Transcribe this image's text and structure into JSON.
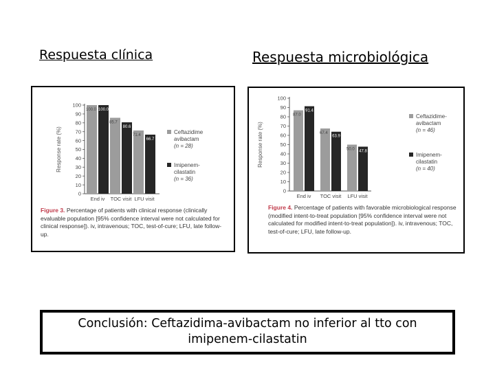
{
  "headings": {
    "left": "Respuesta clínica",
    "right": "Respuesta microbiológica"
  },
  "conclusion": {
    "line1": "Conclusión: Ceftazidima-avibactam no inferior al tto con",
    "line2": "imipenem-cilastatin"
  },
  "colors": {
    "series1": "#9c9c9c",
    "series2": "#262626",
    "axis": "#555555"
  },
  "chart_data": [
    {
      "type": "bar",
      "categories": [
        "End iv",
        "TOC visit",
        "LFU visit"
      ],
      "series": [
        {
          "name": "Ceftazidime-avibactam (n = 28)",
          "values": [
            100.0,
            85.7,
            71.4
          ]
        },
        {
          "name": "Imipenem-cilastatin (n = 36)",
          "values": [
            100.0,
            80.6,
            66.7
          ]
        }
      ],
      "value_labels": [
        [
          "100.0",
          "85.7",
          "71.4"
        ],
        [
          "100.0",
          "80.6",
          "66.7"
        ]
      ],
      "legend": [
        {
          "lines": [
            "Ceftazidime",
            "avibactam",
            "(n = 28)"
          ]
        },
        {
          "lines": [
            "Imipenem-",
            "cilastatin",
            "(n = 36)"
          ]
        }
      ],
      "ylabel": "Response rate (%)",
      "ylim": [
        0,
        100
      ],
      "yticks": [
        0,
        10,
        20,
        30,
        40,
        50,
        60,
        70,
        80,
        90,
        100
      ],
      "legend_position": "right",
      "caption": {
        "figure": "Figure 3.",
        "text": "Percentage of patients with clinical response (clinically evaluable population [95% confidence interval were not calculated for clinical response]). iv, intravenous; TOC, test-of-cure; LFU, late follow-up."
      }
    },
    {
      "type": "bar",
      "categories": [
        "End iv",
        "TOC visit",
        "LFU visit"
      ],
      "series": [
        {
          "name": "Ceftazidime-avibactam (n = 46)",
          "values": [
            87.0,
            67.4,
            50.0
          ]
        },
        {
          "name": "Imipenem-cilastatin (n = 40)",
          "values": [
            91.4,
            63.9,
            47.8
          ]
        }
      ],
      "value_labels": [
        [
          "87.0",
          "67.4",
          "50.0"
        ],
        [
          "91.4",
          "63.9",
          "47.8"
        ]
      ],
      "legend": [
        {
          "lines": [
            "Ceftazidime-",
            "avibactam",
            "(n = 46)"
          ]
        },
        {
          "lines": [
            "Imipenem-",
            "cilastatin",
            "(n = 40)"
          ]
        }
      ],
      "ylabel": "Response rate (%)",
      "ylim": [
        0,
        100
      ],
      "yticks": [
        0,
        10,
        20,
        30,
        40,
        50,
        60,
        70,
        80,
        90,
        100
      ],
      "legend_position": "right",
      "caption": {
        "figure": "Figure 4.",
        "text": "Percentage of patients with favorable microbiological response (modified intent-to-treat population [95% confidence interval were not calculated for modified intent-to-treat population]). iv, intravenous; TOC, test-of-cure; LFU, late follow-up."
      }
    }
  ]
}
